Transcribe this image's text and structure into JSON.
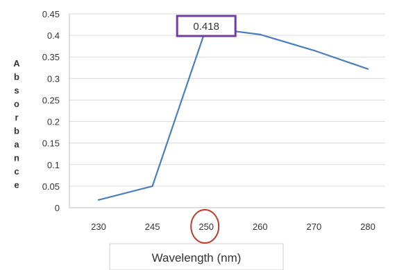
{
  "chart_data": {
    "type": "line",
    "title": "",
    "xlabel": "Wavelength (nm)",
    "ylabel": "Absorbance",
    "x": [
      "230",
      "245",
      "250",
      "260",
      "270",
      "280"
    ],
    "series": [
      {
        "values": [
          0.018,
          0.05,
          0.418,
          0.402,
          0.365,
          0.322
        ]
      }
    ],
    "ylim": [
      0,
      0.45
    ],
    "yticks": [
      "0",
      "0.05",
      "0.1",
      "0.15",
      "0.2",
      "0.25",
      "0.3",
      "0.35",
      "0.4",
      "0.45"
    ],
    "grid": "horizontal",
    "annotation": {
      "label": "0.418",
      "x": "250",
      "y": 0.418,
      "highlight_tick": "250"
    },
    "colors": {
      "line": "#4a7ebb",
      "callout_border": "#6f3fa0",
      "highlight_circle": "#c0392b",
      "grid": "#d9d9d9"
    }
  }
}
